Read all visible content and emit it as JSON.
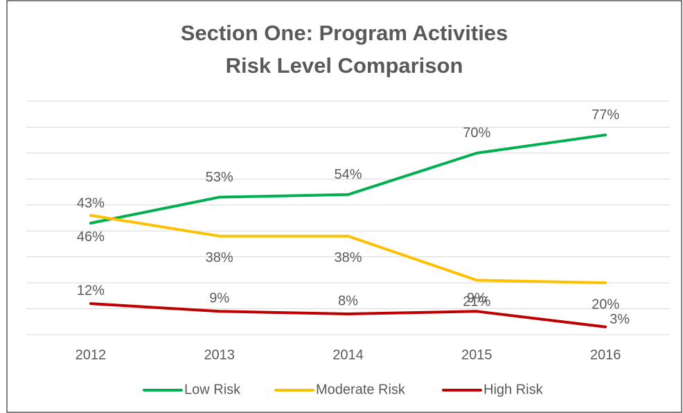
{
  "chart_data": {
    "type": "line",
    "title": [
      "Section One: Program Activities",
      "Risk Level Comparison"
    ],
    "categories": [
      "2012",
      "2013",
      "2014",
      "2015",
      "2016"
    ],
    "series": [
      {
        "name": "Low Risk",
        "color": "#00b050",
        "values": [
          43,
          53,
          54,
          70,
          77
        ],
        "value_labels": [
          "43%",
          "53%",
          "54%",
          "70%",
          "77%"
        ]
      },
      {
        "name": "Moderate Risk",
        "color": "#ffc000",
        "values": [
          46,
          38,
          38,
          21,
          20
        ],
        "value_labels": [
          "46%",
          "38%",
          "38%",
          "21%",
          "20%"
        ]
      },
      {
        "name": "High Risk",
        "color": "#c00000",
        "values": [
          12,
          9,
          8,
          9,
          3
        ],
        "value_labels": [
          "12%",
          "9%",
          "8%",
          "9%",
          "3%"
        ]
      }
    ],
    "ylim": [
      0,
      90
    ],
    "yticks": [
      0,
      10,
      20,
      30,
      40,
      50,
      60,
      70,
      80,
      90
    ],
    "grid": true,
    "legend": "bottom"
  }
}
